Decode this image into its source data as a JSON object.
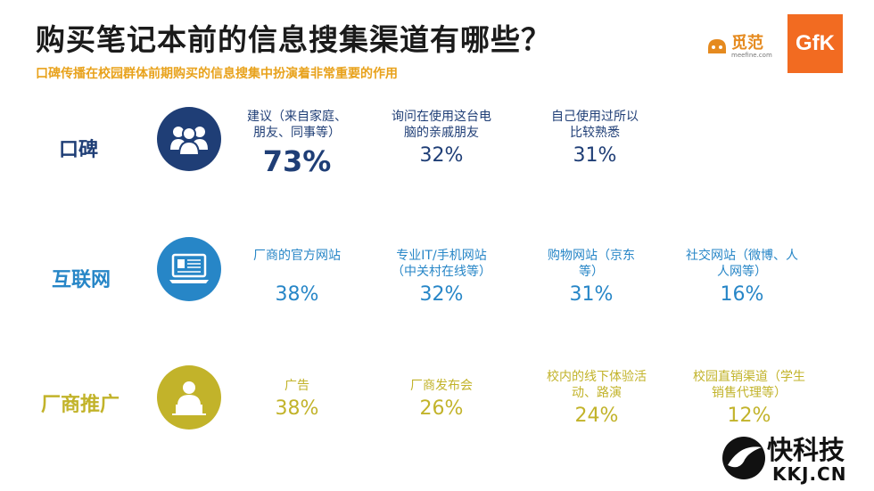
{
  "title": "购买笔记本前的信息搜集渠道有哪些？",
  "subtitle": "口碑传播在校园群体前期购买的信息搜集中扮演着非常重要的作用",
  "logos": {
    "meefine_text": "觅范",
    "meefine_sub": "meefine.com",
    "gfk": "GfK"
  },
  "colors": {
    "koubei": "#1f3e76",
    "internet": "#2786c7",
    "promo": "#c2b32a"
  },
  "categories": [
    {
      "label": "口碑",
      "icon": "people-group-icon",
      "items": [
        {
          "label": "建议（来自家庭、\n朋友、同事等）",
          "pct": "73%"
        },
        {
          "label": "询问在使用这台电\n脑的亲戚朋友",
          "pct": "32%"
        },
        {
          "label": "自己使用过所以\n比较熟悉",
          "pct": "31%"
        }
      ]
    },
    {
      "label": "互联网",
      "icon": "computer-monitor-icon",
      "items": [
        {
          "label": "厂商的官方网站",
          "pct": "38%"
        },
        {
          "label": "专业IT/手机网站\n（中关村在线等）",
          "pct": "32%"
        },
        {
          "label": "购物网站（京东\n等）",
          "pct": "31%"
        },
        {
          "label": "社交网站（微博、人\n人网等）",
          "pct": "16%"
        }
      ]
    },
    {
      "label": "厂商推广",
      "icon": "presenter-icon",
      "items": [
        {
          "label": "广告",
          "pct": "38%"
        },
        {
          "label": "厂商发布会",
          "pct": "26%"
        },
        {
          "label": "校内的线下体验活\n动、路演",
          "pct": "24%"
        },
        {
          "label": "校园直销渠道（学生\n销售代理等）",
          "pct": "12%"
        }
      ]
    }
  ],
  "watermark": {
    "line1": "快科技",
    "line2": "KKJ.CN"
  }
}
